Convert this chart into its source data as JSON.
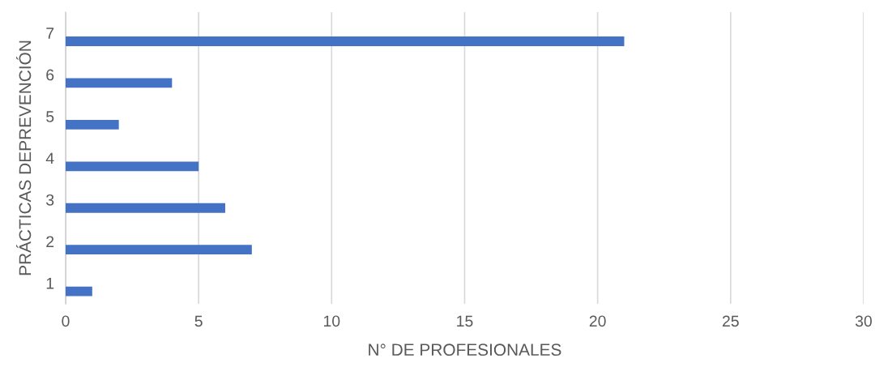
{
  "chart_data": {
    "type": "bar",
    "orientation": "horizontal",
    "xlabel": "N° DE PROFESIONALES",
    "ylabel": "PRÁCTICAS DEPREVENCIÓN",
    "categories": [
      "7",
      "6",
      "5",
      "4",
      "3",
      "2",
      "1"
    ],
    "values": [
      21,
      4,
      2,
      5,
      6,
      7,
      1
    ],
    "color": "#4472c4",
    "xlim": [
      0,
      30
    ],
    "xticks": [
      0,
      5,
      10,
      15,
      20,
      25,
      30
    ],
    "grid": "x",
    "legend": false
  }
}
